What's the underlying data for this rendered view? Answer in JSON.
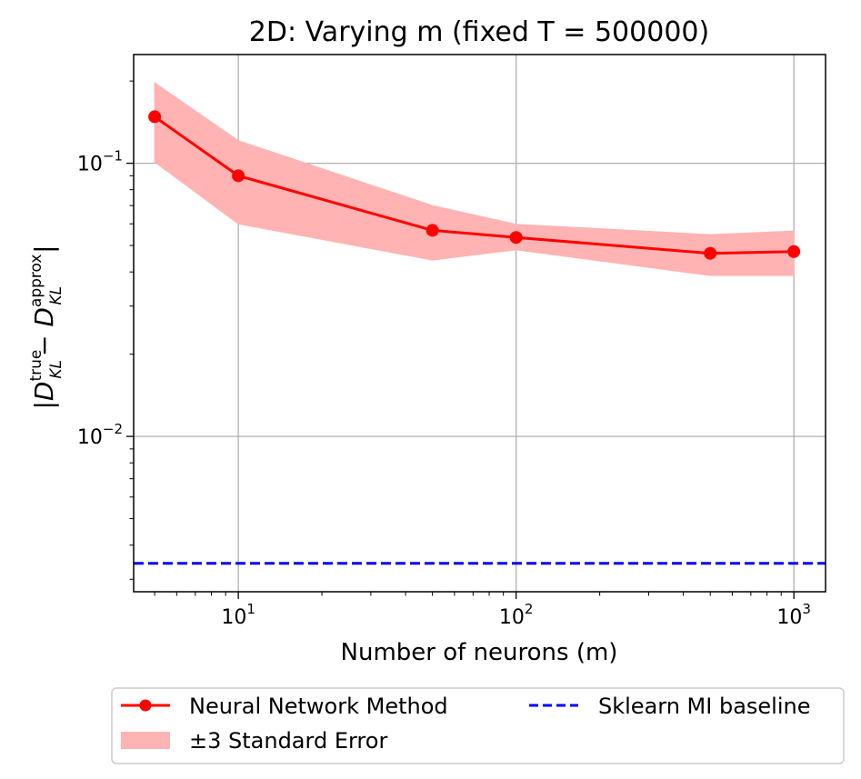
{
  "chart_data": {
    "type": "line",
    "title": "2D: Varying m (fixed T = 500000)",
    "xlabel": "Number of neurons (m)",
    "ylabel": "|D_KL^true − D_KL^approx|",
    "xscale": "log",
    "yscale": "log",
    "xlim": [
      4.2,
      1300
    ],
    "ylim": [
      0.0027,
      0.25
    ],
    "grid": true,
    "x_tick_labels": [
      {
        "base": "10",
        "exp": "1",
        "value": 10
      },
      {
        "base": "10",
        "exp": "2",
        "value": 100
      },
      {
        "base": "10",
        "exp": "3",
        "value": 1000
      }
    ],
    "y_tick_labels": [
      {
        "base": "10",
        "exp": "−2",
        "value": 0.01
      },
      {
        "base": "10",
        "exp": "−1",
        "value": 0.1
      }
    ],
    "series": [
      {
        "name": "Neural Network Method",
        "color": "#ff0000",
        "x": [
          5,
          10,
          50,
          100,
          500,
          1000
        ],
        "y": [
          0.148,
          0.09,
          0.0568,
          0.0535,
          0.0468,
          0.0475
        ],
        "band_lower": [
          0.101,
          0.06,
          0.0442,
          0.0482,
          0.0388,
          0.0388
        ],
        "band_upper": [
          0.197,
          0.121,
          0.07,
          0.0598,
          0.0548,
          0.0565
        ]
      },
      {
        "name": "Sklearn MI baseline",
        "color": "#0000ff",
        "constant_y": 0.00343
      }
    ],
    "band_label": "±3 Standard Error",
    "band_color": "#ffb3b3",
    "legend_position": "bottom-outside"
  }
}
